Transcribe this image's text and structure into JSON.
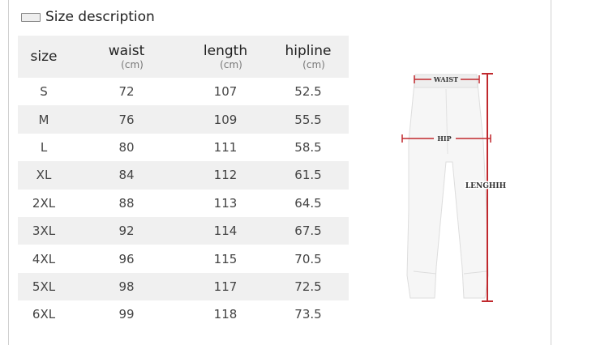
{
  "title": "Size description",
  "title_icon": "image-icon",
  "table": {
    "headers": [
      {
        "label": "size",
        "unit": ""
      },
      {
        "label": "waist",
        "unit": "(cm)"
      },
      {
        "label": "length",
        "unit": "(cm)"
      },
      {
        "label": "hipline",
        "unit": "(cm)"
      }
    ],
    "rows": [
      [
        "S",
        "72",
        "107",
        "52.5"
      ],
      [
        "M",
        "76",
        "109",
        "55.5"
      ],
      [
        "L",
        "80",
        "111",
        "58.5"
      ],
      [
        "XL",
        "84",
        "112",
        "61.5"
      ],
      [
        "2XL",
        "88",
        "113",
        "64.5"
      ],
      [
        "3XL",
        "92",
        "114",
        "67.5"
      ],
      [
        "4XL",
        "96",
        "115",
        "70.5"
      ],
      [
        "5XL",
        "98",
        "117",
        "72.5"
      ],
      [
        "6XL",
        "99",
        "118",
        "73.5"
      ]
    ]
  },
  "figure": {
    "waist_label": "WAIST",
    "hip_label": "HIP",
    "length_label": "LENGHIH",
    "measure_color": "#c0282d"
  }
}
